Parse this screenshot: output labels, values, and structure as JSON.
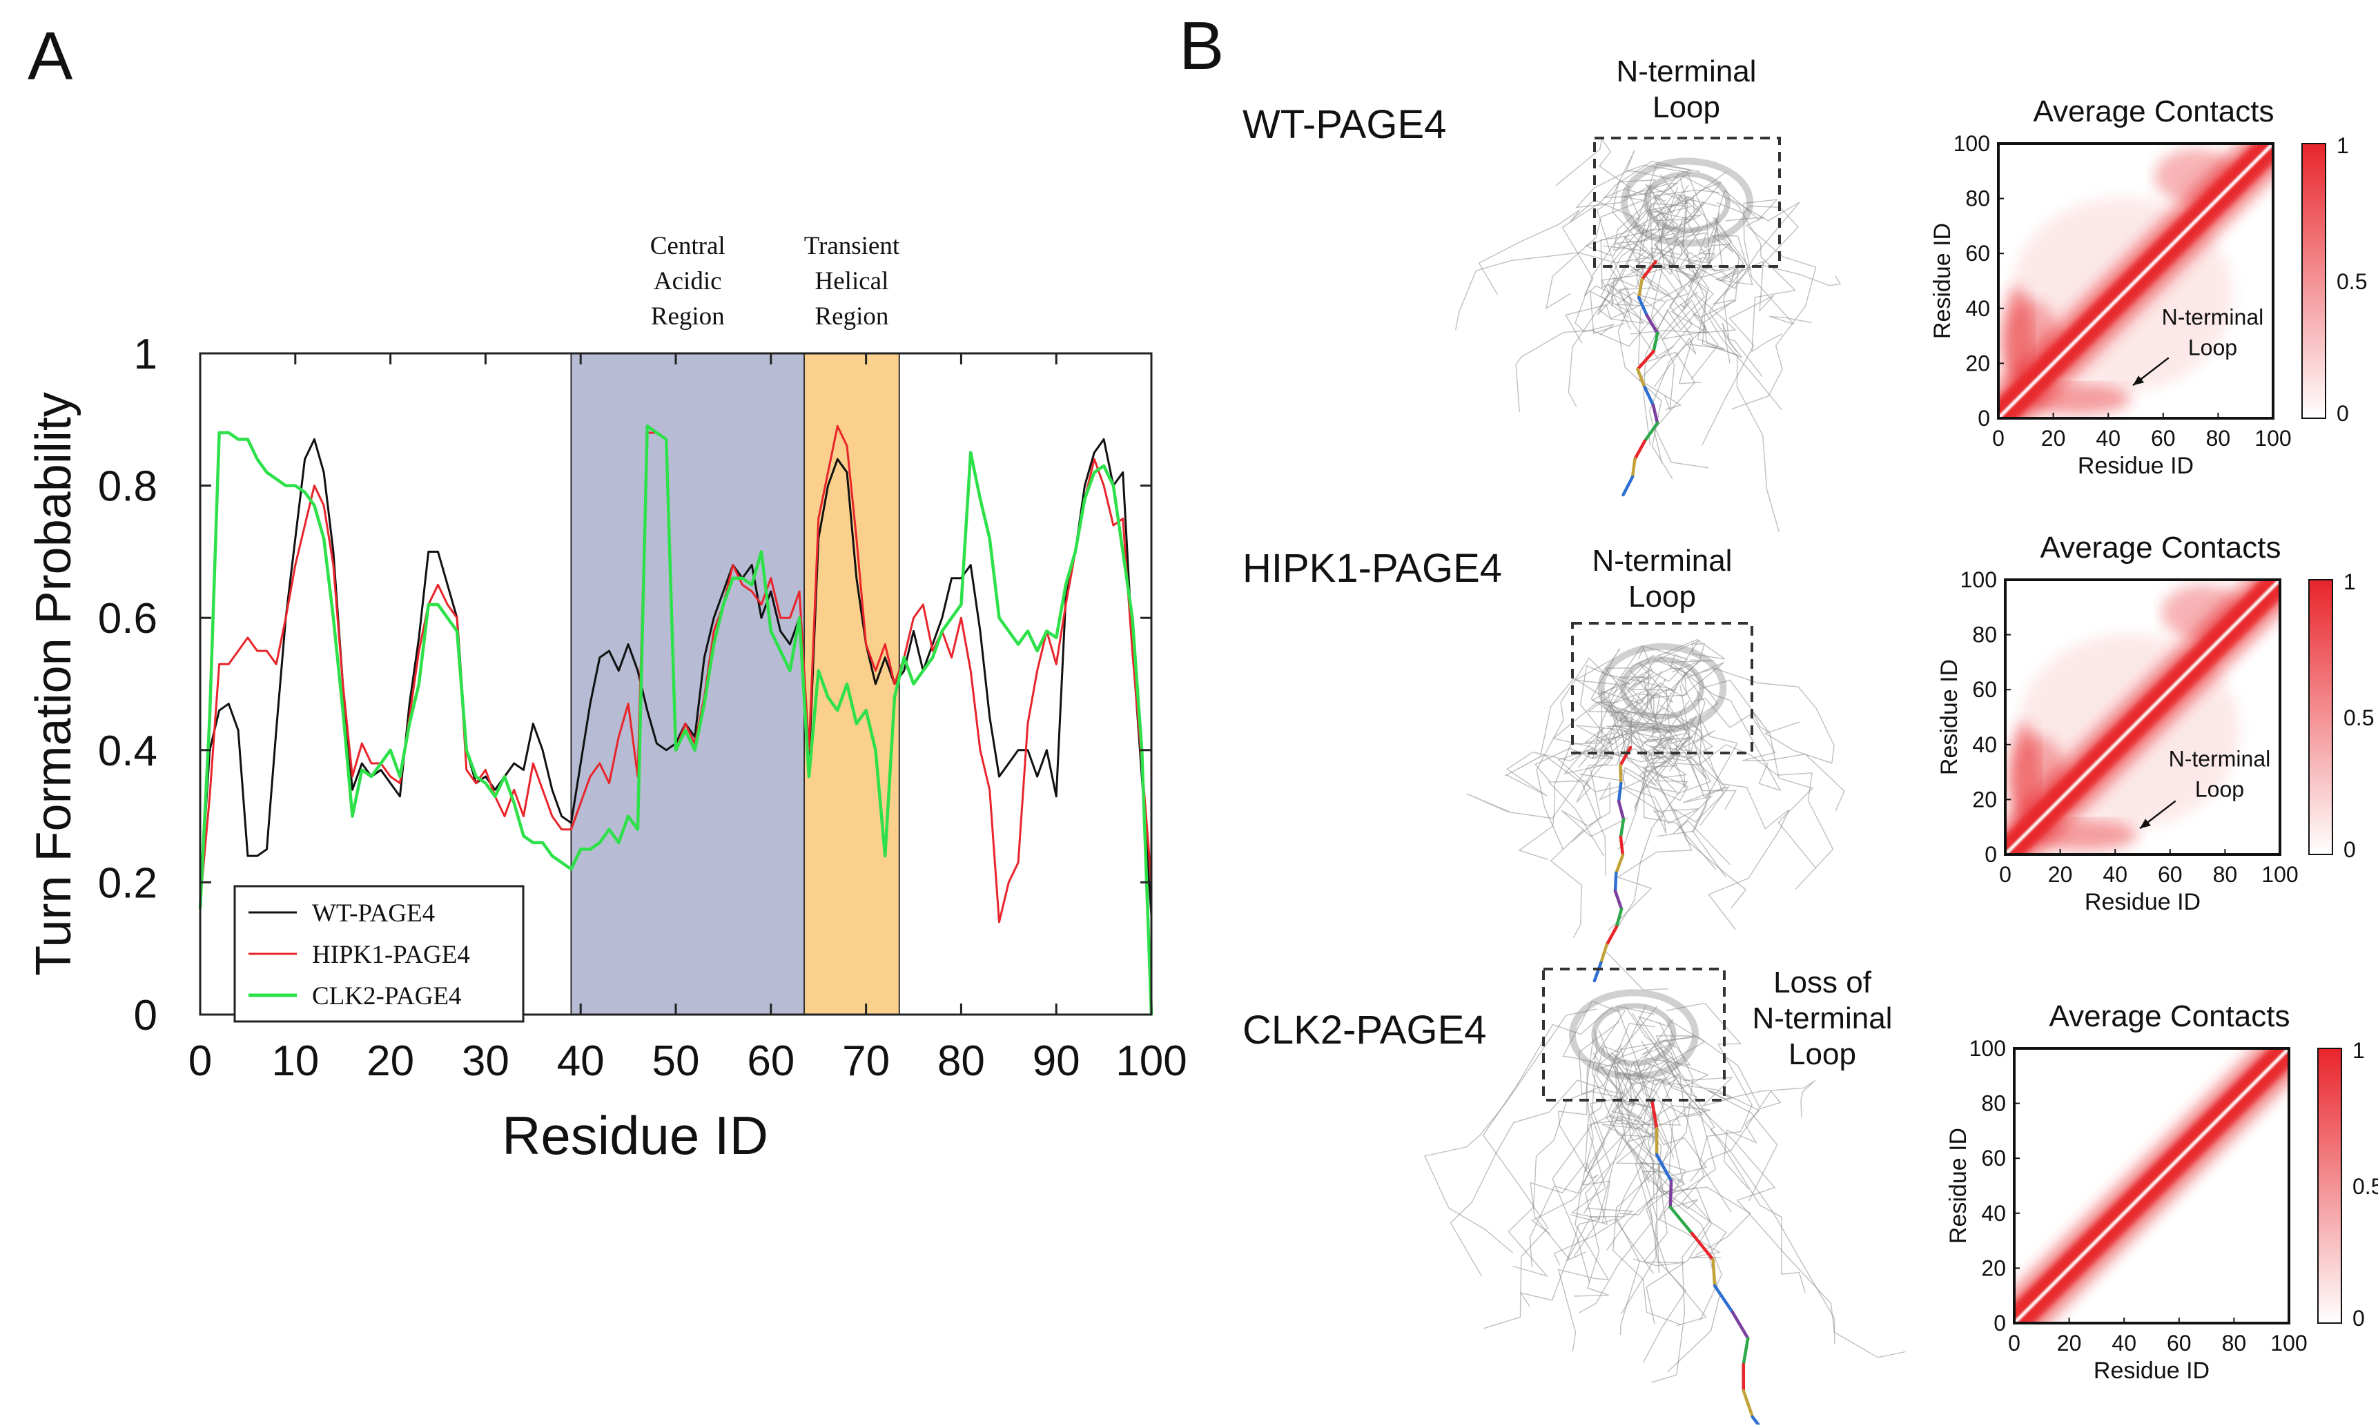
{
  "panel_a": {
    "label": "A",
    "legend": [
      "WT-PAGE4",
      "HIPK1-PAGE4",
      "CLK2-PAGE4"
    ],
    "regions": [
      {
        "name": "Central Acidic Region",
        "lines": [
          "Central",
          "Acidic",
          "Region"
        ],
        "start": 39,
        "end": 63.5,
        "color": "#b7bcd4"
      },
      {
        "name": "Transient Helical Region",
        "lines": [
          "Transient",
          "Helical",
          "Region"
        ],
        "start": 63.5,
        "end": 73.5,
        "color": "#fbd08c"
      }
    ]
  },
  "panel_b": {
    "label": "B",
    "rows": [
      {
        "name": "WT-PAGE4",
        "structure_note": [
          "N-terminal",
          "Loop"
        ],
        "map_title": "Average Contacts",
        "map_annotation": [
          "N-terminal",
          "Loop"
        ],
        "nterm_contact": true
      },
      {
        "name": "HIPK1-PAGE4",
        "structure_note": [
          "N-terminal",
          "Loop"
        ],
        "map_title": "Average Contacts",
        "map_annotation": [
          "N-terminal",
          "Loop"
        ],
        "nterm_contact": true
      },
      {
        "name": "CLK2-PAGE4",
        "structure_note": [
          "Loss of",
          "N-terminal",
          "Loop"
        ],
        "map_title": "Average Contacts",
        "map_annotation": [],
        "nterm_contact": false
      }
    ],
    "map_axes": {
      "xlabel": "Residue ID",
      "ylabel": "Residue ID",
      "ticks": [
        "0",
        "20",
        "40",
        "60",
        "80",
        "100"
      ],
      "colorbar_ticks": [
        "1",
        "0.5",
        "0"
      ]
    }
  },
  "colors": {
    "wt": "#111111",
    "hipk1": "#e8252b",
    "clk2": "#2ee04a",
    "contact": "#e8252b"
  },
  "chart_data": [
    {
      "type": "line",
      "title": "",
      "xlabel": "Residue ID",
      "ylabel": "Turn Formation Probability",
      "xlim": [
        0,
        100
      ],
      "ylim": [
        0,
        1
      ],
      "xticks": [
        "0",
        "10",
        "20",
        "30",
        "40",
        "50",
        "60",
        "70",
        "80",
        "90",
        "100"
      ],
      "yticks": [
        "0",
        "0.2",
        "0.4",
        "0.6",
        "0.8",
        "1"
      ],
      "x": [
        0,
        1,
        2,
        3,
        4,
        5,
        6,
        7,
        8,
        9,
        10,
        11,
        12,
        13,
        14,
        15,
        16,
        17,
        18,
        19,
        20,
        21,
        22,
        23,
        24,
        25,
        26,
        27,
        28,
        29,
        30,
        31,
        32,
        33,
        34,
        35,
        36,
        37,
        38,
        39,
        40,
        41,
        42,
        43,
        44,
        45,
        46,
        47,
        48,
        49,
        50,
        51,
        52,
        53,
        54,
        55,
        56,
        57,
        58,
        59,
        60,
        61,
        62,
        63,
        64,
        65,
        66,
        67,
        68,
        69,
        70,
        71,
        72,
        73,
        74,
        75,
        76,
        77,
        78,
        79,
        80,
        81,
        82,
        83,
        84,
        85,
        86,
        87,
        88,
        89,
        90,
        91,
        92,
        93,
        94,
        95,
        96,
        97,
        98,
        99,
        100
      ],
      "series": [
        {
          "name": "WT-PAGE4",
          "values": [
            0.18,
            0.4,
            0.46,
            0.47,
            0.43,
            0.24,
            0.24,
            0.25,
            0.43,
            0.6,
            0.72,
            0.84,
            0.87,
            0.82,
            0.7,
            0.5,
            0.34,
            0.38,
            0.36,
            0.37,
            0.35,
            0.33,
            0.47,
            0.57,
            0.7,
            0.7,
            0.65,
            0.6,
            0.4,
            0.35,
            0.36,
            0.34,
            0.36,
            0.38,
            0.37,
            0.44,
            0.4,
            0.34,
            0.3,
            0.29,
            0.38,
            0.47,
            0.54,
            0.55,
            0.52,
            0.56,
            0.52,
            0.46,
            0.41,
            0.4,
            0.41,
            0.44,
            0.42,
            0.54,
            0.6,
            0.64,
            0.68,
            0.66,
            0.68,
            0.6,
            0.64,
            0.58,
            0.56,
            0.6,
            0.38,
            0.72,
            0.8,
            0.84,
            0.82,
            0.66,
            0.56,
            0.5,
            0.54,
            0.5,
            0.52,
            0.58,
            0.52,
            0.56,
            0.6,
            0.66,
            0.66,
            0.68,
            0.58,
            0.45,
            0.36,
            0.38,
            0.4,
            0.4,
            0.36,
            0.4,
            0.33,
            0.63,
            0.7,
            0.8,
            0.85,
            0.87,
            0.8,
            0.82,
            0.56,
            0.36,
            0.15
          ]
        },
        {
          "name": "HIPK1-PAGE4",
          "values": [
            0.17,
            0.33,
            0.53,
            0.53,
            0.55,
            0.57,
            0.55,
            0.55,
            0.53,
            0.6,
            0.68,
            0.74,
            0.8,
            0.77,
            0.68,
            0.5,
            0.36,
            0.41,
            0.38,
            0.38,
            0.36,
            0.35,
            0.45,
            0.55,
            0.62,
            0.65,
            0.62,
            0.6,
            0.37,
            0.35,
            0.37,
            0.33,
            0.3,
            0.34,
            0.3,
            0.38,
            0.34,
            0.3,
            0.28,
            0.28,
            0.32,
            0.36,
            0.38,
            0.35,
            0.42,
            0.47,
            0.36,
            0.88,
            0.88,
            0.87,
            0.4,
            0.44,
            0.41,
            0.48,
            0.58,
            0.62,
            0.68,
            0.65,
            0.64,
            0.62,
            0.66,
            0.6,
            0.6,
            0.64,
            0.4,
            0.75,
            0.82,
            0.89,
            0.86,
            0.72,
            0.56,
            0.52,
            0.56,
            0.5,
            0.54,
            0.6,
            0.62,
            0.55,
            0.58,
            0.54,
            0.6,
            0.52,
            0.4,
            0.34,
            0.14,
            0.2,
            0.23,
            0.44,
            0.52,
            0.58,
            0.53,
            0.62,
            0.7,
            0.78,
            0.84,
            0.8,
            0.74,
            0.75,
            0.55,
            0.38,
            0.2
          ]
        },
        {
          "name": "CLK2-PAGE4",
          "values": [
            0.16,
            0.45,
            0.88,
            0.88,
            0.87,
            0.87,
            0.84,
            0.82,
            0.81,
            0.8,
            0.8,
            0.79,
            0.77,
            0.72,
            0.6,
            0.46,
            0.3,
            0.37,
            0.36,
            0.38,
            0.4,
            0.36,
            0.44,
            0.5,
            0.62,
            0.62,
            0.6,
            0.58,
            0.4,
            0.36,
            0.35,
            0.33,
            0.36,
            0.32,
            0.27,
            0.26,
            0.26,
            0.24,
            0.23,
            0.22,
            0.25,
            0.25,
            0.26,
            0.28,
            0.26,
            0.3,
            0.28,
            0.89,
            0.88,
            0.87,
            0.4,
            0.43,
            0.4,
            0.47,
            0.56,
            0.62,
            0.66,
            0.66,
            0.65,
            0.7,
            0.58,
            0.55,
            0.52,
            0.6,
            0.36,
            0.52,
            0.48,
            0.46,
            0.5,
            0.44,
            0.46,
            0.4,
            0.24,
            0.48,
            0.54,
            0.5,
            0.52,
            0.54,
            0.58,
            0.6,
            0.62,
            0.85,
            0.78,
            0.72,
            0.6,
            0.58,
            0.56,
            0.58,
            0.55,
            0.58,
            0.57,
            0.65,
            0.7,
            0.78,
            0.82,
            0.83,
            0.8,
            0.7,
            0.6,
            0.4,
            0.0
          ]
        }
      ]
    },
    {
      "type": "heatmap",
      "title": "Average Contacts",
      "xlabel": "Residue ID",
      "ylabel": "Residue ID",
      "xlim": [
        0,
        100
      ],
      "ylim": [
        0,
        100
      ],
      "colorbar_range": [
        0,
        1
      ]
    },
    {
      "type": "heatmap",
      "title": "Average Contacts",
      "xlabel": "Residue ID",
      "ylabel": "Residue ID",
      "xlim": [
        0,
        100
      ],
      "ylim": [
        0,
        100
      ],
      "colorbar_range": [
        0,
        1
      ]
    },
    {
      "type": "heatmap",
      "title": "Average Contacts",
      "xlabel": "Residue ID",
      "ylabel": "Residue ID",
      "xlim": [
        0,
        100
      ],
      "ylim": [
        0,
        100
      ],
      "colorbar_range": [
        0,
        1
      ]
    }
  ]
}
